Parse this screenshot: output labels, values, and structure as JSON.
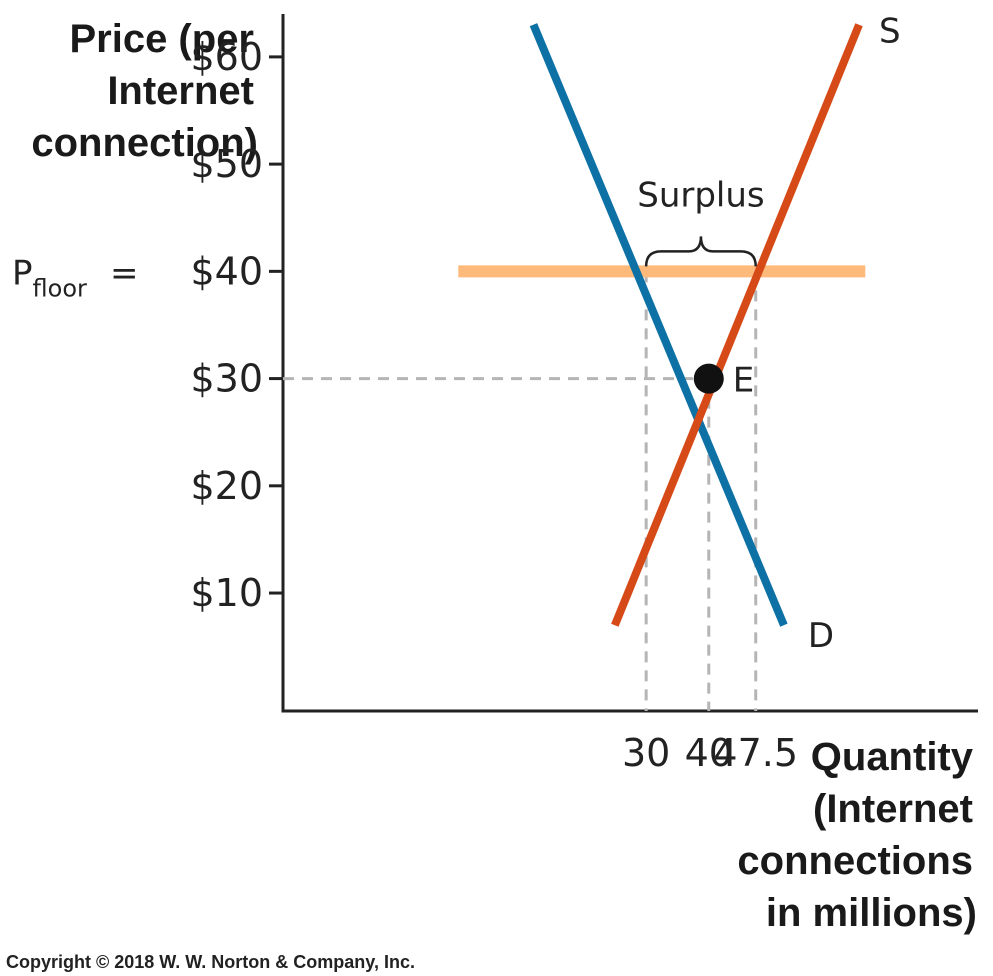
{
  "chart_data": {
    "type": "line",
    "ylabel_lines": [
      "Price (per",
      "Internet",
      "connection)"
    ],
    "xlabel_lines": [
      "Quantity",
      "(Internet",
      "connections",
      "in millions)"
    ],
    "y_ticks": [
      {
        "value": 60,
        "label": "$60"
      },
      {
        "value": 50,
        "label": "$50"
      },
      {
        "value": 40,
        "label": "$40"
      },
      {
        "value": 30,
        "label": "$30"
      },
      {
        "value": 20,
        "label": "$20"
      },
      {
        "value": 10,
        "label": "$10"
      }
    ],
    "x_ticks": [
      {
        "value": 30,
        "label": "30"
      },
      {
        "value": 40,
        "label": "40"
      },
      {
        "value": 47.5,
        "label": "47.5"
      }
    ],
    "series": [
      {
        "name": "D",
        "color": "#0e71a5",
        "points": [
          [
            12,
            63
          ],
          [
            52,
            7
          ]
        ]
      },
      {
        "name": "S",
        "color": "#d64a17",
        "points": [
          [
            25,
            7
          ],
          [
            64,
            63
          ]
        ]
      }
    ],
    "price_floor": {
      "value": 40,
      "label_main": "P",
      "label_sub": "floor",
      "label_eq": "=",
      "color": "#ffb97a",
      "x_range": [
        0,
        65
      ]
    },
    "equilibrium": {
      "label": "E",
      "x": 40,
      "y": 30
    },
    "surplus": {
      "label": "Surplus",
      "x_from": 30,
      "x_to": 47.5
    },
    "xlim": [
      -28,
      83
    ],
    "ylim": [
      -1,
      64
    ]
  },
  "copyright": "Copyright © 2018 W. W. Norton & Company, Inc."
}
